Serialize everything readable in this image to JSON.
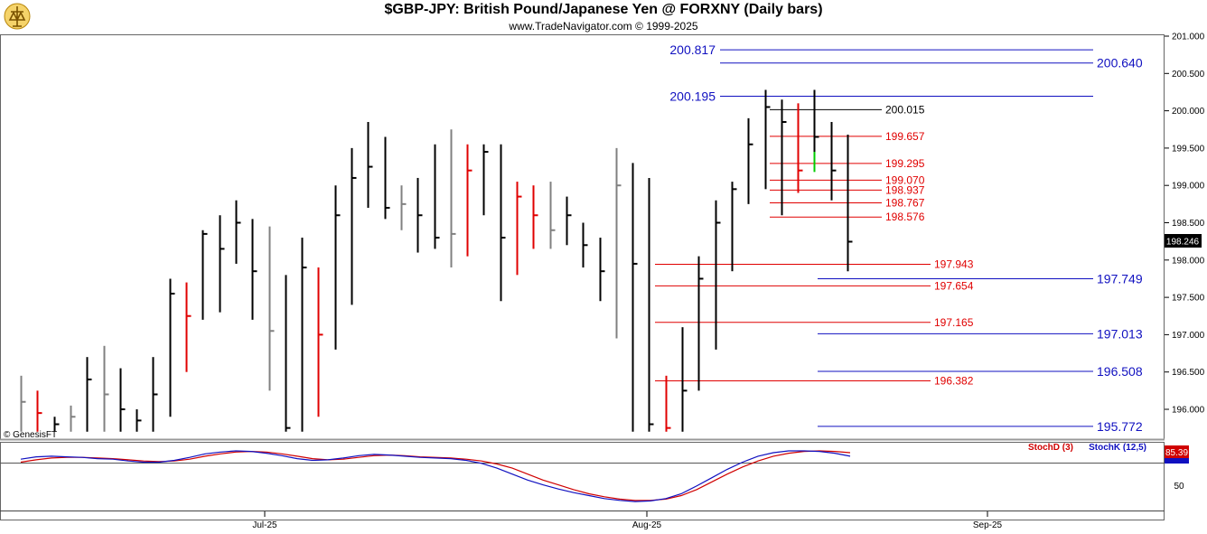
{
  "header": {
    "title": "$GBP-JPY:  British Pound/Japanese Yen @ FORXNY  (Daily bars)",
    "subtitle": "www.TradeNavigator.com © 1999-2025"
  },
  "copyright": "© GenesisFT",
  "current_price": "198.246",
  "stoch_value": "85.39",
  "colors": {
    "up_bar": "#000000",
    "down_bar": "#e00000",
    "neutral_bar": "#808080",
    "green_bar": "#00cc00",
    "blue_line": "#1010c0",
    "red_line": "#e00000",
    "stoch_d": "#d00000",
    "stoch_k": "#1010c0"
  },
  "chart_data": {
    "type": "line",
    "price_axis": {
      "ylim": [
        195.7,
        201.05
      ],
      "ticks": [
        "201.000",
        "200.500",
        "200.000",
        "199.500",
        "199.000",
        "198.500",
        "198.000",
        "197.500",
        "197.000",
        "196.500",
        "196.000"
      ]
    },
    "x_axis": {
      "labels": [
        "Jul-25",
        "Aug-25",
        "Sep-25"
      ]
    },
    "blue_levels": [
      {
        "value": 200.817,
        "label": "200.817"
      },
      {
        "value": 200.64,
        "label": "200.640"
      },
      {
        "value": 200.195,
        "label": "200.195"
      },
      {
        "value": 197.749,
        "label": "197.749"
      },
      {
        "value": 197.013,
        "label": "197.013"
      },
      {
        "value": 196.508,
        "label": "196.508"
      },
      {
        "value": 195.772,
        "label": "195.772"
      }
    ],
    "black_level": {
      "value": 200.015,
      "label": "200.015"
    },
    "red_levels": [
      {
        "value": 199.657,
        "label": "199.657"
      },
      {
        "value": 199.295,
        "label": "199.295"
      },
      {
        "value": 199.07,
        "label": "199.070"
      },
      {
        "value": 198.937,
        "label": "198.937"
      },
      {
        "value": 198.767,
        "label": "198.767"
      },
      {
        "value": 198.576,
        "label": "198.576"
      },
      {
        "value": 197.943,
        "label": "197.943"
      },
      {
        "value": 197.654,
        "label": "197.654"
      },
      {
        "value": 197.165,
        "label": "197.165"
      },
      {
        "value": 196.382,
        "label": "196.382"
      }
    ],
    "bars": [
      {
        "high": 196.45,
        "low": 195.7,
        "close": 196.1,
        "c": "g"
      },
      {
        "high": 196.25,
        "low": 195.7,
        "close": 195.95,
        "c": "r"
      },
      {
        "high": 195.9,
        "low": 195.7,
        "close": 195.8,
        "c": "k"
      },
      {
        "high": 196.05,
        "low": 195.7,
        "close": 195.9,
        "c": "g"
      },
      {
        "high": 196.7,
        "low": 195.7,
        "close": 196.4,
        "c": "k"
      },
      {
        "high": 196.85,
        "low": 195.7,
        "close": 196.2,
        "c": "g"
      },
      {
        "high": 196.55,
        "low": 195.7,
        "close": 196.0,
        "c": "k"
      },
      {
        "high": 196.0,
        "low": 195.7,
        "close": 195.85,
        "c": "k"
      },
      {
        "high": 196.7,
        "low": 195.7,
        "close": 196.2,
        "c": "k"
      },
      {
        "high": 197.75,
        "low": 195.9,
        "close": 197.55,
        "c": "k"
      },
      {
        "high": 197.7,
        "low": 196.5,
        "close": 197.25,
        "c": "r"
      },
      {
        "high": 198.4,
        "low": 197.2,
        "close": 198.35,
        "c": "k"
      },
      {
        "high": 198.6,
        "low": 197.3,
        "close": 198.15,
        "c": "k"
      },
      {
        "high": 198.8,
        "low": 197.95,
        "close": 198.5,
        "c": "k"
      },
      {
        "high": 198.55,
        "low": 197.2,
        "close": 197.85,
        "c": "k"
      },
      {
        "high": 198.45,
        "low": 196.25,
        "close": 197.05,
        "c": "g"
      },
      {
        "high": 197.8,
        "low": 195.7,
        "close": 195.75,
        "c": "k"
      },
      {
        "high": 198.3,
        "low": 195.7,
        "close": 197.9,
        "c": "k"
      },
      {
        "high": 197.9,
        "low": 195.9,
        "close": 197.0,
        "c": "r"
      },
      {
        "high": 199.0,
        "low": 196.8,
        "close": 198.6,
        "c": "k"
      },
      {
        "high": 199.5,
        "low": 197.4,
        "close": 199.1,
        "c": "k"
      },
      {
        "high": 199.85,
        "low": 198.7,
        "close": 199.25,
        "c": "k"
      },
      {
        "high": 199.65,
        "low": 198.55,
        "close": 198.7,
        "c": "k"
      },
      {
        "high": 199.0,
        "low": 198.4,
        "close": 198.75,
        "c": "g"
      },
      {
        "high": 199.1,
        "low": 198.1,
        "close": 198.6,
        "c": "k"
      },
      {
        "high": 199.55,
        "low": 198.15,
        "close": 198.3,
        "c": "k"
      },
      {
        "high": 199.75,
        "low": 197.9,
        "close": 198.35,
        "c": "g"
      },
      {
        "high": 199.55,
        "low": 198.05,
        "close": 199.2,
        "c": "r"
      },
      {
        "high": 199.55,
        "low": 198.6,
        "close": 199.45,
        "c": "k"
      },
      {
        "high": 199.55,
        "low": 197.45,
        "close": 198.3,
        "c": "k"
      },
      {
        "high": 199.05,
        "low": 197.8,
        "close": 198.85,
        "c": "r"
      },
      {
        "high": 199.0,
        "low": 198.15,
        "close": 198.6,
        "c": "r"
      },
      {
        "high": 199.05,
        "low": 198.15,
        "close": 198.4,
        "c": "g"
      },
      {
        "high": 198.85,
        "low": 198.2,
        "close": 198.6,
        "c": "k"
      },
      {
        "high": 198.5,
        "low": 197.9,
        "close": 198.2,
        "c": "k"
      },
      {
        "high": 198.3,
        "low": 197.45,
        "close": 197.85,
        "c": "k"
      },
      {
        "high": 199.5,
        "low": 196.95,
        "close": 199.0,
        "c": "g"
      },
      {
        "high": 199.3,
        "low": 195.7,
        "close": 197.95,
        "c": "k"
      },
      {
        "high": 199.1,
        "low": 195.7,
        "close": 195.8,
        "c": "k"
      },
      {
        "high": 196.45,
        "low": 195.7,
        "close": 195.75,
        "c": "r"
      },
      {
        "high": 197.1,
        "low": 195.7,
        "close": 196.25,
        "c": "k"
      },
      {
        "high": 198.05,
        "low": 196.25,
        "close": 197.75,
        "c": "k"
      },
      {
        "high": 198.8,
        "low": 196.8,
        "close": 198.5,
        "c": "k"
      },
      {
        "high": 199.05,
        "low": 197.85,
        "close": 198.95,
        "c": "k"
      },
      {
        "high": 199.9,
        "low": 198.75,
        "close": 199.55,
        "c": "k"
      },
      {
        "high": 200.28,
        "low": 198.95,
        "close": 200.05,
        "c": "k"
      },
      {
        "high": 200.15,
        "low": 198.6,
        "close": 199.85,
        "c": "k"
      },
      {
        "high": 200.1,
        "low": 198.9,
        "close": 199.2,
        "c": "r"
      },
      {
        "high": 200.28,
        "low": 199.2,
        "close": 199.65,
        "c": "k"
      },
      {
        "high": 199.85,
        "low": 198.8,
        "close": 199.2,
        "c": "k"
      },
      {
        "high": 199.68,
        "low": 197.85,
        "close": 198.246,
        "c": "k"
      }
    ],
    "stochastic": {
      "ylabel_tick": "50",
      "series": [
        {
          "name": "StochD (3)",
          "values": [
            78,
            82,
            85,
            86,
            86,
            85,
            84,
            82,
            80,
            79,
            80,
            83,
            88,
            92,
            95,
            96,
            95,
            92,
            88,
            84,
            82,
            83,
            86,
            89,
            90,
            89,
            87,
            86,
            85,
            83,
            80,
            75,
            68,
            58,
            48,
            40,
            32,
            25,
            20,
            16,
            14,
            14,
            16,
            22,
            32,
            45,
            58,
            70,
            80,
            88,
            93,
            96,
            97,
            96,
            94
          ]
        },
        {
          "name": "StochK (12,5)",
          "values": [
            83,
            87,
            88,
            87,
            86,
            84,
            83,
            80,
            78,
            78,
            81,
            86,
            92,
            95,
            97,
            96,
            93,
            89,
            84,
            81,
            82,
            85,
            89,
            91,
            90,
            88,
            86,
            85,
            84,
            81,
            76,
            68,
            58,
            48,
            40,
            33,
            27,
            22,
            17,
            14,
            12,
            13,
            17,
            25,
            38,
            52,
            66,
            78,
            88,
            94,
            97,
            97,
            96,
            93,
            88
          ]
        }
      ]
    }
  }
}
